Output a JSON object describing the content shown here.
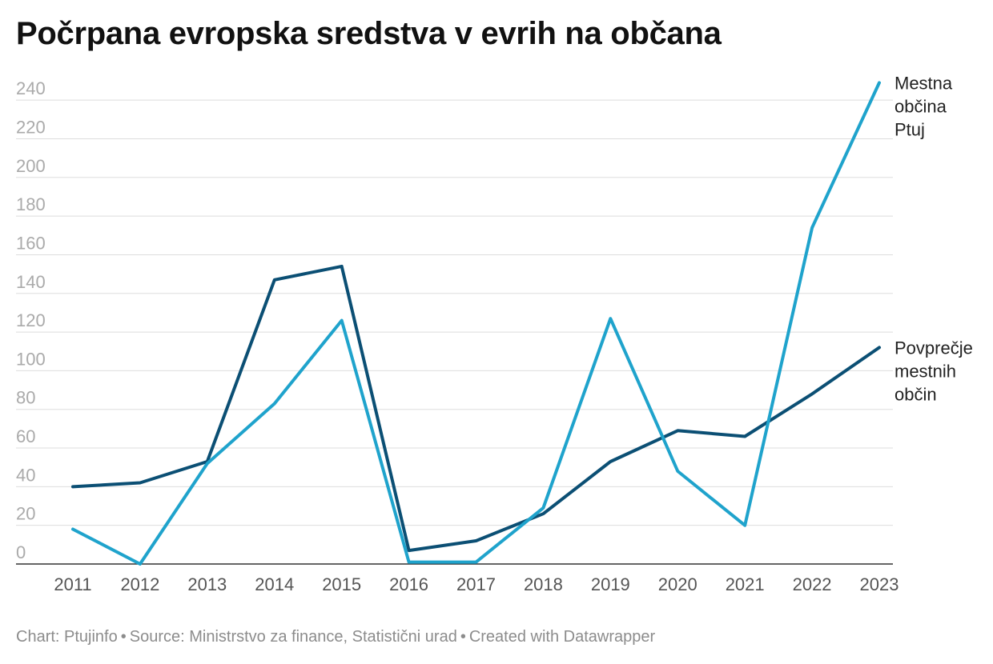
{
  "title": "Počrpana evropska sredstva v evrih na občana",
  "footer": {
    "chart_by": "Chart: Ptujinfo",
    "source": "Source: Ministrstvo za finance, Statistični urad",
    "created": "Created with Datawrapper"
  },
  "colors": {
    "grid": "#dddddd",
    "baseline": "#333333",
    "tick_text": "#aaaaaa",
    "x_tick_text": "#555555",
    "label_text": "#222222"
  },
  "chart_data": {
    "type": "line",
    "x": [
      "2011",
      "2012",
      "2013",
      "2014",
      "2015",
      "2016",
      "2017",
      "2018",
      "2019",
      "2020",
      "2021",
      "2022",
      "2023"
    ],
    "ylim": [
      0,
      250
    ],
    "yticks": [
      0,
      20,
      40,
      60,
      80,
      100,
      120,
      140,
      160,
      180,
      200,
      220,
      240
    ],
    "grid": true,
    "legend": "direct labels at line ends",
    "series": [
      {
        "name": "Povprečje mestnih občin",
        "label_lines": [
          "Povprečje",
          "mestnih",
          "občin"
        ],
        "color": "#0b4f74",
        "values": [
          40,
          42,
          53,
          147,
          154,
          7,
          12,
          26,
          53,
          69,
          66,
          88,
          112
        ]
      },
      {
        "name": "Mestna občina Ptuj",
        "label_lines": [
          "Mestna",
          "občina",
          "Ptuj"
        ],
        "color": "#1fa3cc",
        "values": [
          18,
          0,
          52,
          83,
          126,
          1,
          1,
          29,
          127,
          48,
          20,
          174,
          249
        ]
      }
    ]
  }
}
